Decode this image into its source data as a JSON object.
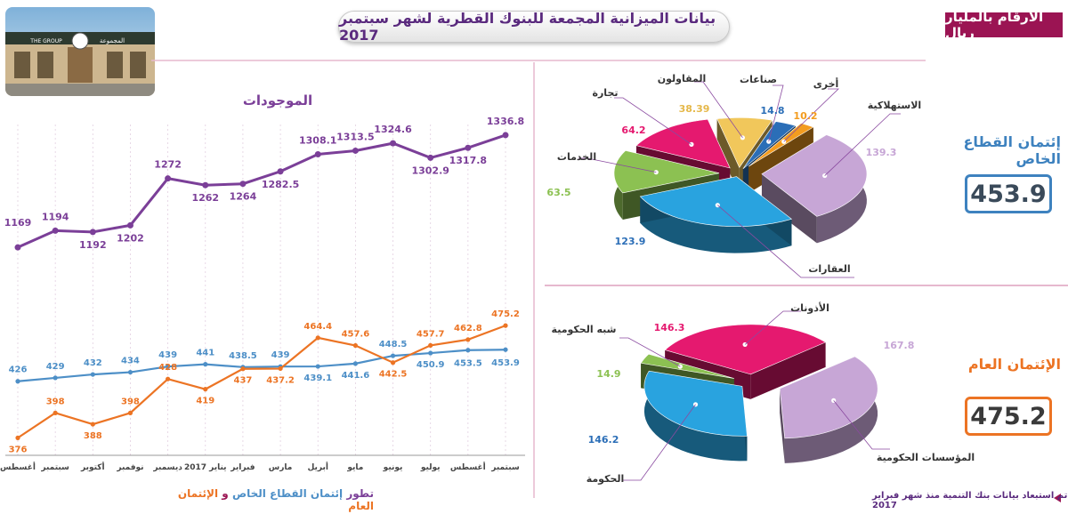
{
  "header": {
    "title": "بيانات الميزانية المجمعة للبنوك القطرية لشهر سبتمبر 2017",
    "unit_note": "الأرقام بالمليار ريال"
  },
  "photo": {
    "sign_text": "المجموعة",
    "logo_text": "THE GROUP"
  },
  "source_note": "تم استبعاد بيانات بنك التنمية منذ شهر فبراير 2017",
  "private_credit": {
    "label": "إئتمان القطاع الخاص",
    "total": "453.9"
  },
  "public_credit": {
    "label": "الإئتمان العام",
    "total": "475.2"
  },
  "legend": {
    "prefix": "تطور",
    "series_private": "إئتمان القطاع الخاص",
    "joiner": "و",
    "series_public": "الإئتمان العام"
  },
  "colors": {
    "assets": "#7b3f98",
    "private": "#4d8fc7",
    "public": "#ec7424",
    "accent": "#9b1453"
  },
  "chart_data": [
    {
      "type": "line",
      "title": "الموجودات",
      "categories": [
        "أغسطس",
        "سبتمبر",
        "أكتوبر",
        "نوفمبر",
        "ديسمبر",
        "يناير 2017",
        "فبراير",
        "مارس",
        "أبريل",
        "مايو",
        "يونيو",
        "يوليو",
        "أغسطس",
        "سبتمبر"
      ],
      "series": [
        {
          "values": [
            1169,
            1194,
            1192,
            1202,
            1272,
            1262,
            1264,
            1282.5,
            1308.1,
            1313.5,
            1324.6,
            1302.9,
            1317.8,
            1336.8
          ]
        }
      ],
      "ylim": [
        1140,
        1350
      ]
    },
    {
      "type": "line",
      "title": "",
      "categories": [
        "أغسطس",
        "سبتمبر",
        "أكتوبر",
        "نوفمبر",
        "ديسمبر",
        "يناير 2017",
        "فبراير",
        "مارس",
        "أبريل",
        "مايو",
        "يونيو",
        "يوليو",
        "أغسطس",
        "سبتمبر"
      ],
      "series": [
        {
          "name": "إئتمان القطاع الخاص",
          "values": [
            426,
            429,
            432,
            434,
            439,
            441,
            438.5,
            439,
            439.1,
            441.6,
            448.5,
            450.9,
            453.5,
            453.9
          ]
        },
        {
          "name": "الإئتمان العام",
          "values": [
            376,
            398,
            388,
            398,
            428,
            419,
            437,
            437.2,
            464.4,
            457.6,
            442.5,
            457.7,
            462.8,
            475.2
          ]
        }
      ],
      "ylim": [
        370,
        480
      ]
    },
    {
      "type": "pie",
      "title": "إئتمان القطاع الخاص",
      "categories": [
        "الاستهلاكية",
        "العقارات",
        "الخدمات",
        "تجارة",
        "المقاولون",
        "صناعات",
        "أخرى"
      ],
      "values": [
        139.3,
        123.9,
        63.5,
        64.2,
        38.39,
        14.8,
        10.2
      ],
      "colors": [
        "#c7a6d6",
        "#29a3df",
        "#8cc152",
        "#e5196f",
        "#f1c75b",
        "#2b6eb7",
        "#f39c1f"
      ],
      "value_colors": [
        "#c7a6d6",
        "#2b6eb7",
        "#8cc152",
        "#e5196f",
        "#e5b84a",
        "#2b6eb7",
        "#f39c1f"
      ]
    },
    {
      "type": "pie",
      "title": "الإئتمان العام",
      "categories": [
        "المؤسسات الحكومية",
        "الحكومة",
        "شبه الحكومية",
        "الأذونات"
      ],
      "values": [
        167.8,
        146.2,
        14.9,
        146.3
      ],
      "colors": [
        "#c7a6d6",
        "#29a3df",
        "#8cc152",
        "#e5196f"
      ],
      "value_colors": [
        "#c7a6d6",
        "#2b6eb7",
        "#8cc152",
        "#e5196f"
      ]
    }
  ]
}
